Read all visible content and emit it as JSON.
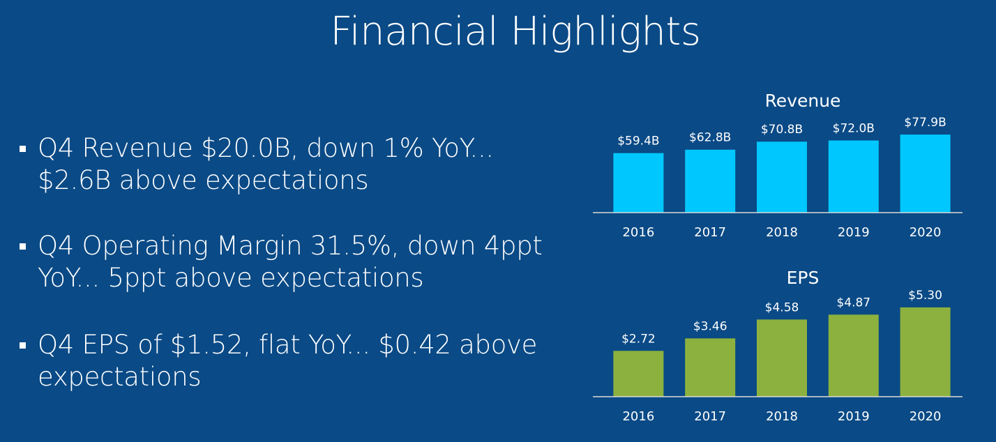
{
  "slide": {
    "title": "Financial Highlights",
    "bullets": [
      "Q4 Revenue $20.0B, down 1% YoY... $2.6B above expectations",
      "Q4 Operating Margin 31.5%, down 4ppt YoY... 5ppt above expectations",
      "Q4 EPS of $1.52, flat YoY... $0.42 above expectations"
    ]
  },
  "colors": {
    "background": "#0a4a86",
    "revenue_bar": "#00c7fd",
    "eps_bar": "#8cb13e",
    "text": "#ffffff"
  },
  "chart_data": [
    {
      "type": "bar",
      "title": "Revenue",
      "categories": [
        "2016",
        "2017",
        "2018",
        "2019",
        "2020"
      ],
      "values": [
        59.4,
        62.8,
        70.8,
        72.0,
        77.9
      ],
      "data_labels": [
        "$59.4B",
        "$62.8B",
        "$70.8B",
        "$72.0B",
        "$77.9B"
      ],
      "ylim": [
        0,
        80
      ],
      "grid": false
    },
    {
      "type": "bar",
      "title": "EPS",
      "categories": [
        "2016",
        "2017",
        "2018",
        "2019",
        "2020"
      ],
      "values": [
        2.72,
        3.46,
        4.58,
        4.87,
        5.3
      ],
      "data_labels": [
        "$2.72",
        "$3.46",
        "$4.58",
        "$4.87",
        "$5.30"
      ],
      "ylim": [
        0,
        6
      ],
      "grid": false
    }
  ]
}
